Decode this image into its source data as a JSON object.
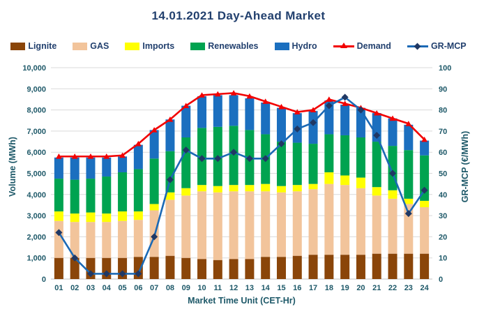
{
  "title": "14.01.2021  Day-Ahead Market",
  "colors": {
    "lignite": "#8A4509",
    "gas": "#F2C49B",
    "imports": "#FFFF00",
    "renewables": "#00A350",
    "hydro": "#1B6FBF",
    "demand": "#F20000",
    "mcp_line": "#1B69B5",
    "mcp_marker": "#203864",
    "title_text": "#22406E",
    "axis_text": "#1D5868",
    "gridline": "#D9D9D9",
    "zero_line": "#C0C0C0"
  },
  "legend": {
    "items": [
      {
        "label": "Lignite",
        "type": "box",
        "color": "#8A4509"
      },
      {
        "label": "GAS",
        "type": "box",
        "color": "#F2C49B"
      },
      {
        "label": "Imports",
        "type": "box",
        "color": "#FFFF00"
      },
      {
        "label": "Renewables",
        "type": "box",
        "color": "#00A350"
      },
      {
        "label": "Hydro",
        "type": "box",
        "color": "#1B6FBF"
      },
      {
        "label": "Demand",
        "type": "line-triangle",
        "color": "#F20000"
      },
      {
        "label": "GR-MCP",
        "type": "line-diamond",
        "color": "#1B69B5",
        "marker_color": "#203864"
      }
    ]
  },
  "chart_data": {
    "type": "combo-stacked-bar-line",
    "title": "14.01.2021  Day-Ahead Market",
    "x_label": "Market Time Unit (CET-Hr)",
    "categories": [
      "01",
      "02",
      "03",
      "04",
      "05",
      "06",
      "07",
      "08",
      "09",
      "10",
      "11",
      "12",
      "13",
      "14",
      "15",
      "16",
      "17",
      "18",
      "19",
      "20",
      "21",
      "22",
      "23",
      "24"
    ],
    "left_axis": {
      "label": "Volume (MWh)",
      "min": 0,
      "max": 10000,
      "step": 1000,
      "ticks": [
        0,
        1000,
        2000,
        3000,
        4000,
        5000,
        6000,
        7000,
        8000,
        9000,
        10000
      ]
    },
    "right_axis": {
      "label": "GR-MCP (€/MWh)",
      "min": 0,
      "max": 100,
      "step": 10,
      "ticks": [
        0,
        10,
        20,
        30,
        40,
        50,
        60,
        70,
        80,
        90,
        100
      ]
    },
    "grid": "horizontal",
    "legend_position": "top",
    "series": [
      {
        "name": "Lignite",
        "type": "bar",
        "stack": "volume",
        "axis": "left",
        "color": "#8A4509",
        "values": [
          1000,
          1000,
          1000,
          1000,
          1000,
          1050,
          1050,
          1100,
          1000,
          950,
          900,
          950,
          950,
          1050,
          1050,
          1100,
          1150,
          1150,
          1150,
          1150,
          1200,
          1200,
          1200,
          1200
        ]
      },
      {
        "name": "GAS",
        "type": "bar",
        "stack": "volume",
        "axis": "left",
        "color": "#F2C49B",
        "values": [
          1750,
          1700,
          1700,
          1700,
          1750,
          1750,
          2200,
          2650,
          2950,
          3200,
          3200,
          3200,
          3200,
          3100,
          3050,
          3050,
          3100,
          3350,
          3300,
          3150,
          2750,
          2600,
          2350,
          2200
        ]
      },
      {
        "name": "Imports",
        "type": "bar",
        "stack": "volume",
        "axis": "left",
        "color": "#FFFF00",
        "values": [
          450,
          400,
          450,
          400,
          450,
          400,
          300,
          350,
          350,
          300,
          300,
          300,
          300,
          350,
          300,
          300,
          250,
          550,
          450,
          500,
          400,
          400,
          250,
          300
        ]
      },
      {
        "name": "Renewables",
        "type": "bar",
        "stack": "volume",
        "axis": "left",
        "color": "#00A350",
        "values": [
          1550,
          1600,
          1600,
          1750,
          1850,
          2000,
          2150,
          1950,
          2400,
          2700,
          2800,
          2800,
          2600,
          2350,
          2100,
          2000,
          1900,
          1800,
          1900,
          1900,
          2150,
          2100,
          2300,
          2150
        ]
      },
      {
        "name": "Hydro",
        "type": "bar",
        "stack": "volume",
        "axis": "left",
        "color": "#1B6FBF",
        "values": [
          1000,
          1050,
          1000,
          900,
          750,
          1150,
          1350,
          1500,
          1500,
          1500,
          1500,
          1450,
          1500,
          1500,
          1600,
          1400,
          1550,
          1600,
          1450,
          1400,
          1350,
          1300,
          1200,
          700
        ]
      },
      {
        "name": "Demand",
        "type": "line",
        "marker": "triangle",
        "axis": "left",
        "color": "#F20000",
        "values": [
          5800,
          5800,
          5800,
          5800,
          5850,
          6400,
          7050,
          7550,
          8200,
          8700,
          8750,
          8800,
          8650,
          8400,
          8150,
          7900,
          8000,
          8500,
          8300,
          8100,
          7850,
          7600,
          7350,
          6600
        ]
      },
      {
        "name": "GR-MCP",
        "type": "line",
        "marker": "diamond",
        "axis": "right",
        "color": "#1B69B5",
        "marker_color": "#203864",
        "values": [
          22,
          10,
          2.5,
          2.5,
          2.5,
          2.5,
          20,
          47,
          61,
          57,
          57,
          60,
          57,
          57,
          64,
          71,
          74,
          82,
          86,
          80,
          68,
          50,
          31,
          42
        ]
      }
    ]
  }
}
